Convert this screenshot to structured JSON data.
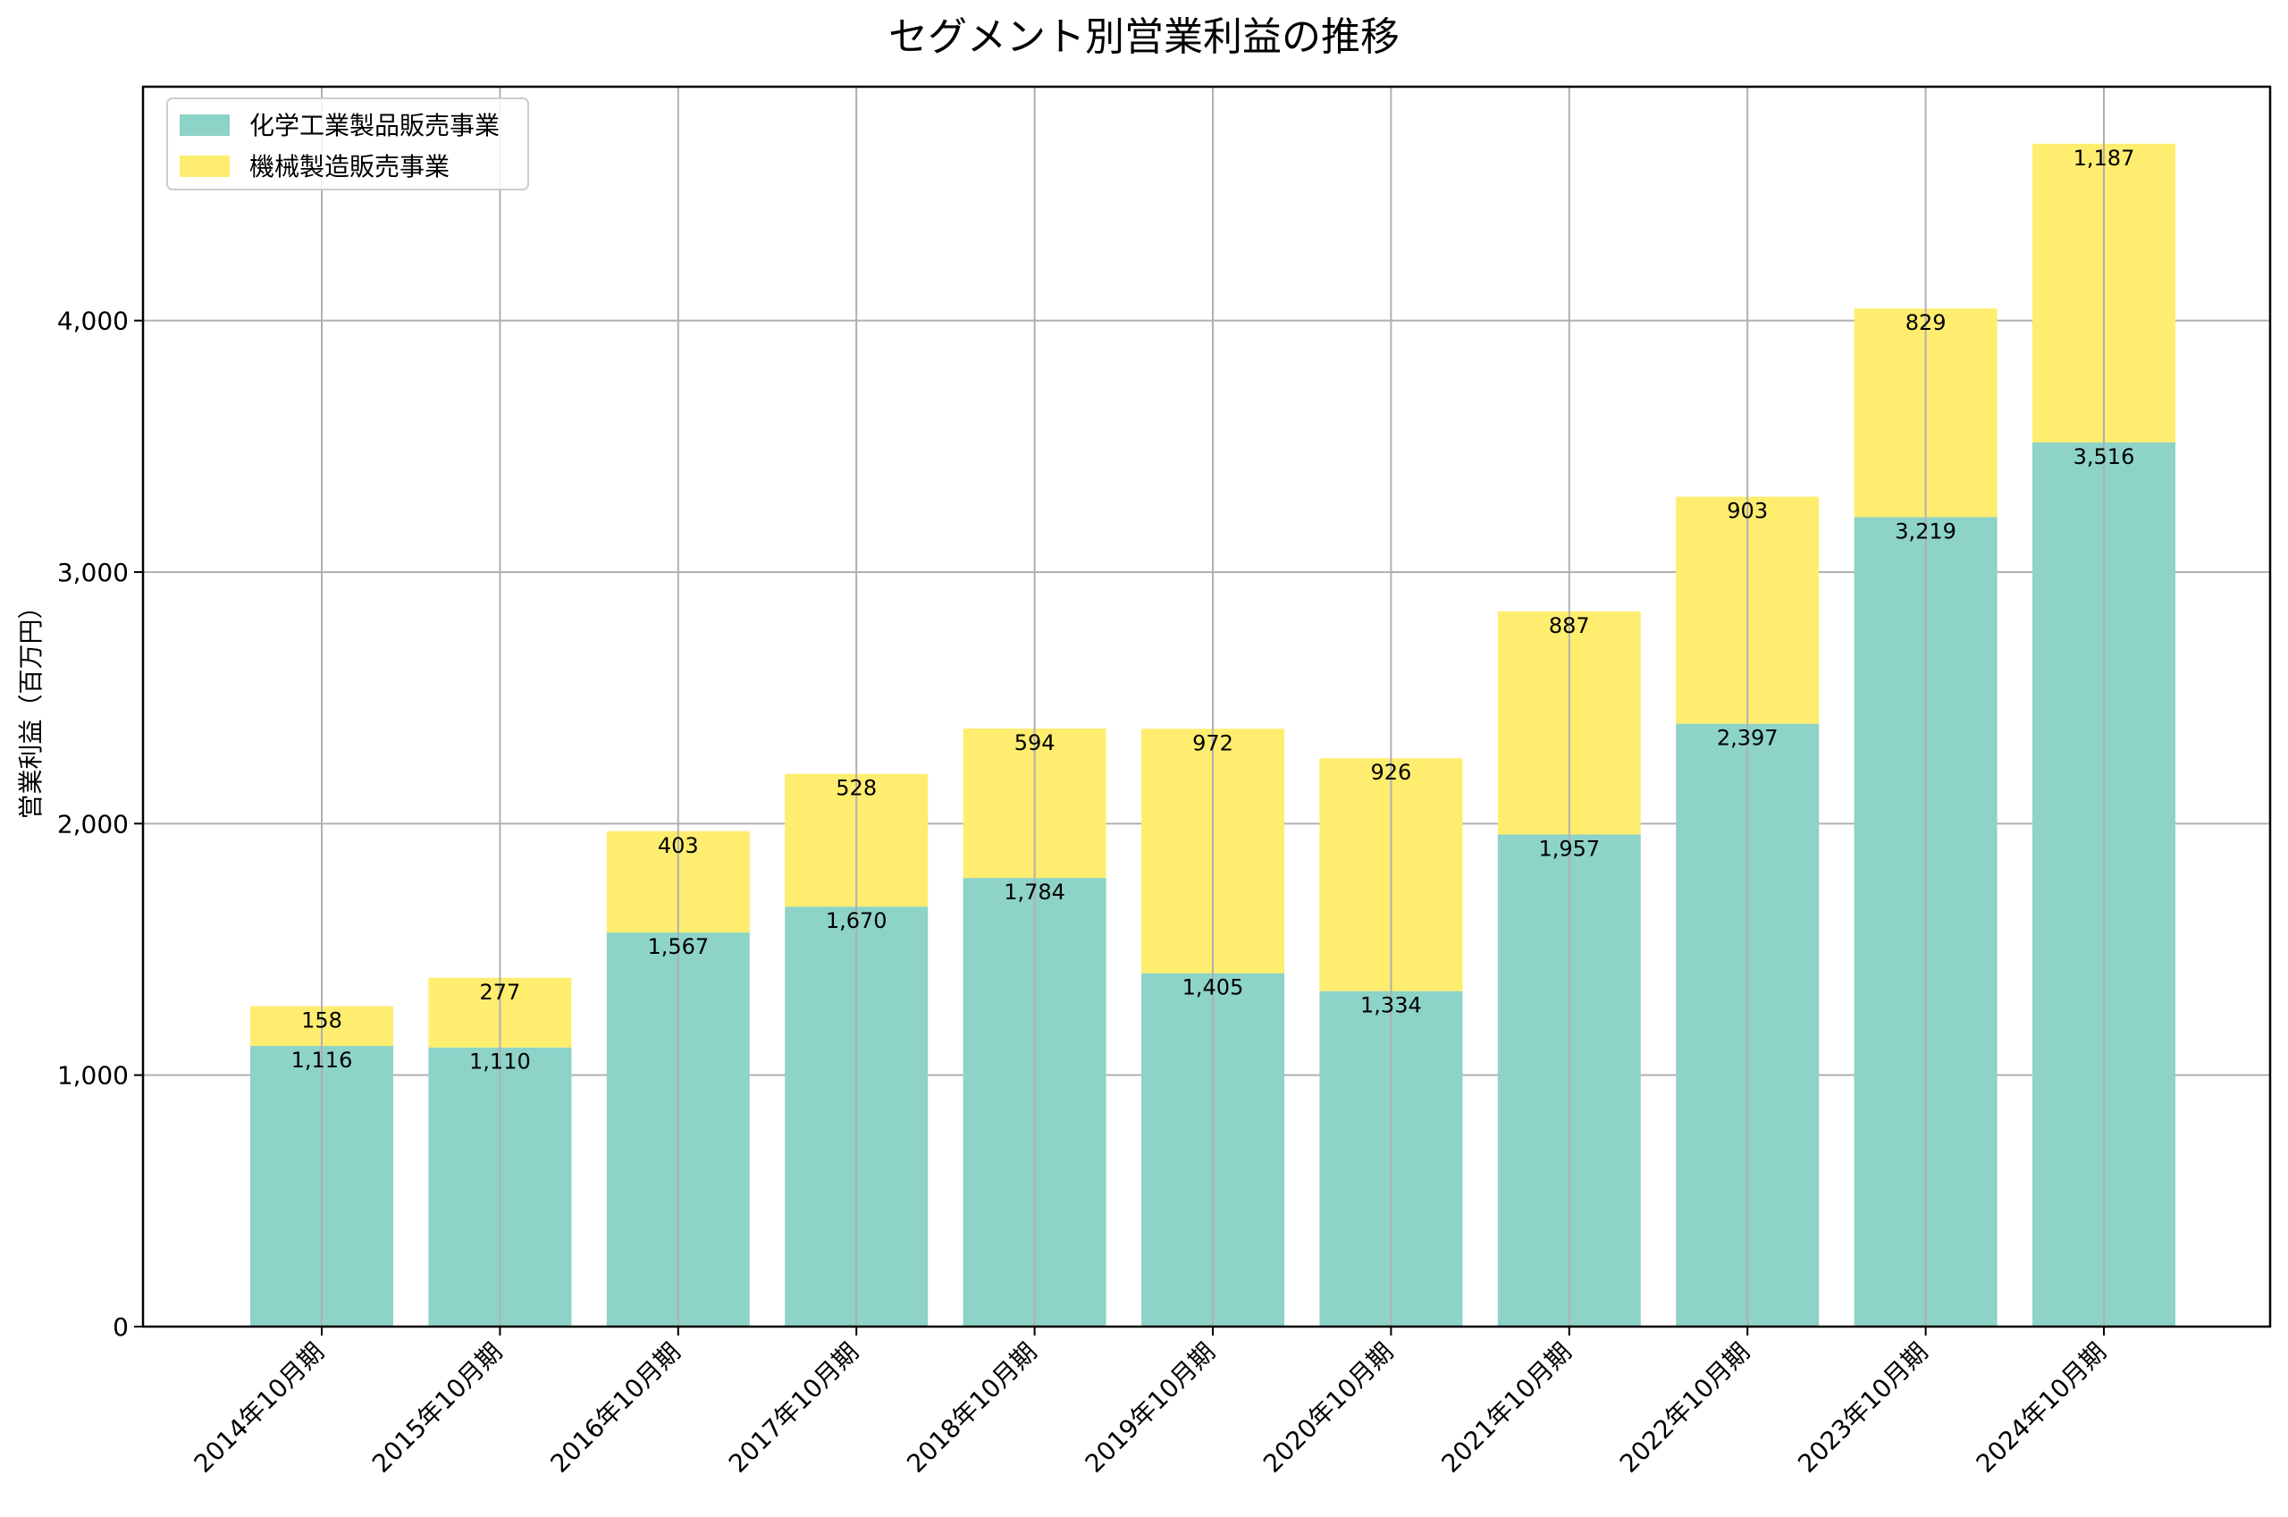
{
  "chart_data": {
    "type": "bar",
    "stacked": true,
    "title": "セグメント別営業利益の推移",
    "xlabel": "",
    "ylabel": "営業利益（百万円）",
    "categories": [
      "2014年10月期",
      "2015年10月期",
      "2016年10月期",
      "2017年10月期",
      "2018年10月期",
      "2019年10月期",
      "2020年10月期",
      "2021年10月期",
      "2022年10月期",
      "2023年10月期",
      "2024年10月期"
    ],
    "series": [
      {
        "name": "化学工業製品販売事業",
        "color": "#8dd3c7",
        "values": [
          1116,
          1110,
          1567,
          1670,
          1784,
          1405,
          1334,
          1957,
          2397,
          3219,
          3516
        ],
        "labels": [
          "1,116",
          "1,110",
          "1,567",
          "1,670",
          "1,784",
          "1,405",
          "1,334",
          "1,957",
          "2,397",
          "3,219",
          "3,516"
        ]
      },
      {
        "name": "機械製造販売事業",
        "color": "#ffed6f",
        "values": [
          158,
          277,
          403,
          528,
          594,
          972,
          926,
          887,
          903,
          829,
          1187
        ],
        "labels": [
          "158",
          "277",
          "403",
          "528",
          "594",
          "972",
          "926",
          "887",
          "903",
          "829",
          "1,187"
        ]
      }
    ],
    "ylim": [
      0,
      4930
    ],
    "yticks": [
      0,
      1000,
      2000,
      3000,
      4000
    ],
    "ytick_labels": [
      "0",
      "1,000",
      "2,000",
      "3,000",
      "4,000"
    ],
    "grid": true,
    "legend_position": "top-left"
  }
}
